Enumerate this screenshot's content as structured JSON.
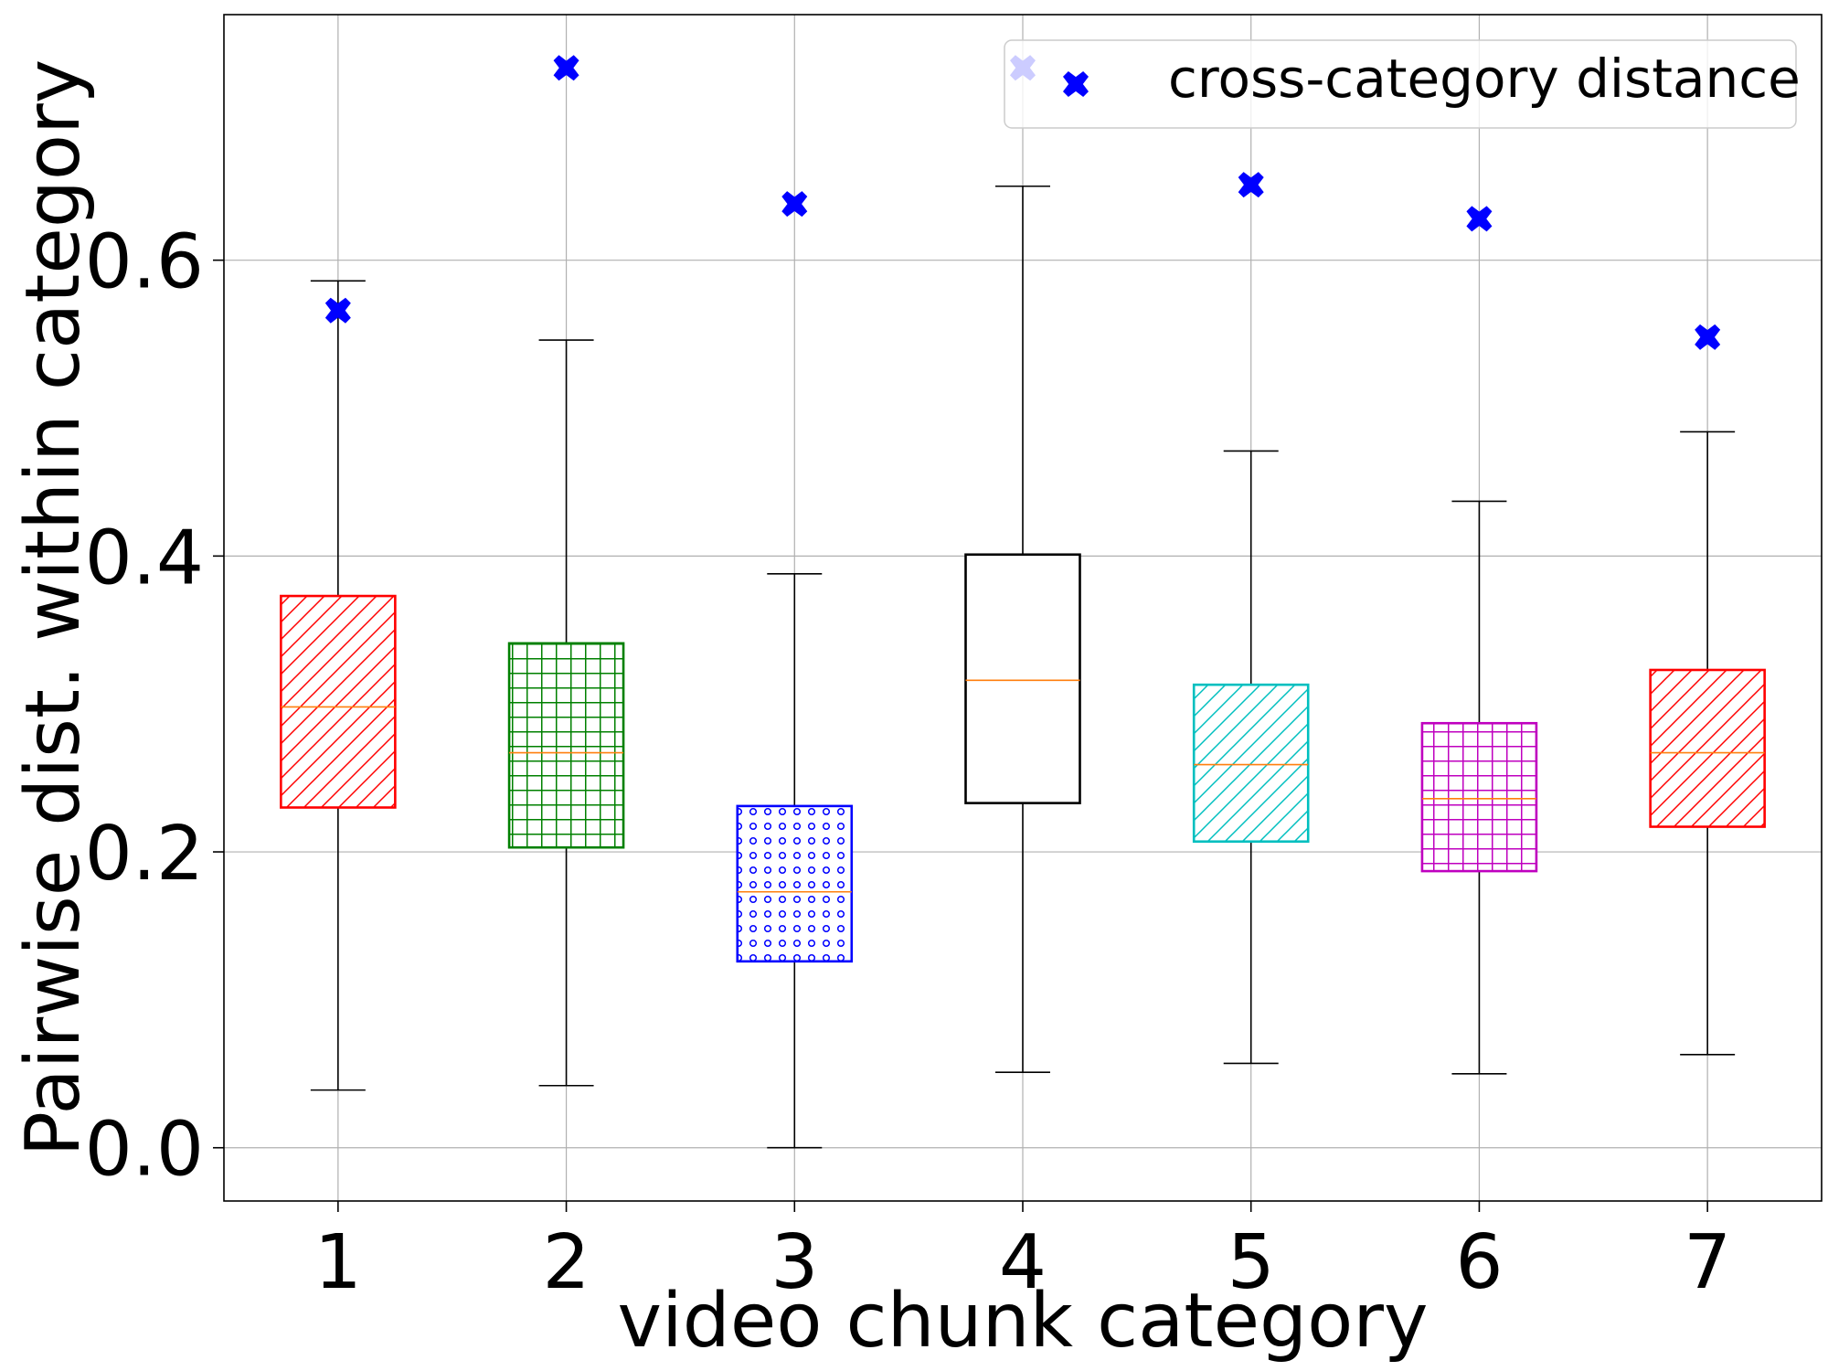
{
  "chart_data": {
    "type": "box",
    "xlabel": "video chunk category",
    "ylabel": "Pairwise dist. within category",
    "ylim": [
      -0.036,
      0.766
    ],
    "xlim": [
      0.5,
      7.5
    ],
    "grid": true,
    "legend_position": "top-right",
    "y_ticks": [
      "0.0",
      "0.2",
      "0.4",
      "0.6"
    ],
    "y_tick_values": [
      0.0,
      0.2,
      0.4,
      0.6
    ],
    "categories": [
      "1",
      "2",
      "3",
      "4",
      "5",
      "6",
      "7"
    ],
    "boxes": [
      {
        "whisker_low": 0.039,
        "q1": 0.23,
        "median": 0.298,
        "q3": 0.373,
        "whisker_high": 0.586,
        "color": "#ff0000",
        "hatch": "diag"
      },
      {
        "whisker_low": 0.042,
        "q1": 0.203,
        "median": 0.267,
        "q3": 0.341,
        "whisker_high": 0.546,
        "color": "#008000",
        "hatch": "grid"
      },
      {
        "whisker_low": 0.0,
        "q1": 0.126,
        "median": 0.173,
        "q3": 0.231,
        "whisker_high": 0.388,
        "color": "#0000ff",
        "hatch": "dots"
      },
      {
        "whisker_low": 0.051,
        "q1": 0.233,
        "median": 0.316,
        "q3": 0.401,
        "whisker_high": 0.65,
        "color": "#000000",
        "hatch": "none"
      },
      {
        "whisker_low": 0.057,
        "q1": 0.207,
        "median": 0.259,
        "q3": 0.313,
        "whisker_high": 0.471,
        "color": "#00bfbf",
        "hatch": "diag"
      },
      {
        "whisker_low": 0.05,
        "q1": 0.187,
        "median": 0.236,
        "q3": 0.287,
        "whisker_high": 0.437,
        "color": "#bf00bf",
        "hatch": "grid"
      },
      {
        "whisker_low": 0.063,
        "q1": 0.217,
        "median": 0.267,
        "q3": 0.323,
        "whisker_high": 0.484,
        "color": "#ff0000",
        "hatch": "diag"
      }
    ],
    "median_color": "#ff7f0e",
    "series": [
      {
        "name": "cross-category distance",
        "type": "scatter",
        "marker": "X",
        "color": "#0000ff",
        "values": [
          0.566,
          0.73,
          0.638,
          0.73,
          0.651,
          0.628,
          0.548
        ]
      }
    ]
  }
}
